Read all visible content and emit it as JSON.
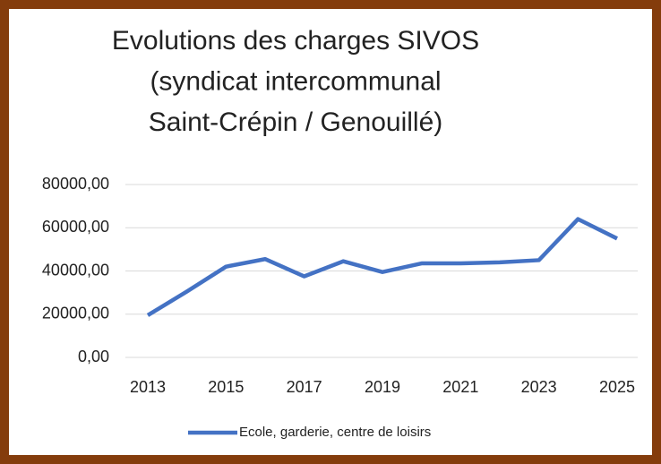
{
  "chart_data": {
    "type": "line",
    "title": [
      "Evolutions des charges SIVOS",
      "(syndicat intercommunal",
      "Saint-Crépin / Genouillé)"
    ],
    "x": [
      2013,
      2014,
      2015,
      2016,
      2017,
      2018,
      2019,
      2020,
      2021,
      2022,
      2023,
      2024,
      2025
    ],
    "series": [
      {
        "name": "Ecole, garderie, centre de loisirs",
        "color": "#4472c4",
        "values": [
          19500,
          30500,
          42000,
          45500,
          37500,
          44500,
          39500,
          43500,
          43500,
          44000,
          45000,
          64000,
          55000
        ]
      }
    ],
    "xlim": [
      2013,
      2025
    ],
    "xticks": [
      2013,
      2015,
      2017,
      2019,
      2021,
      2023,
      2025
    ],
    "ylim": [
      0,
      80000
    ],
    "yticks": [
      {
        "value": 0,
        "label": "0,00"
      },
      {
        "value": 20000,
        "label": "20000,00"
      },
      {
        "value": 40000,
        "label": "40000,00"
      },
      {
        "value": 60000,
        "label": "60000,00"
      },
      {
        "value": 80000,
        "label": "80000,00"
      }
    ],
    "grid": true,
    "legend": "bottom"
  }
}
